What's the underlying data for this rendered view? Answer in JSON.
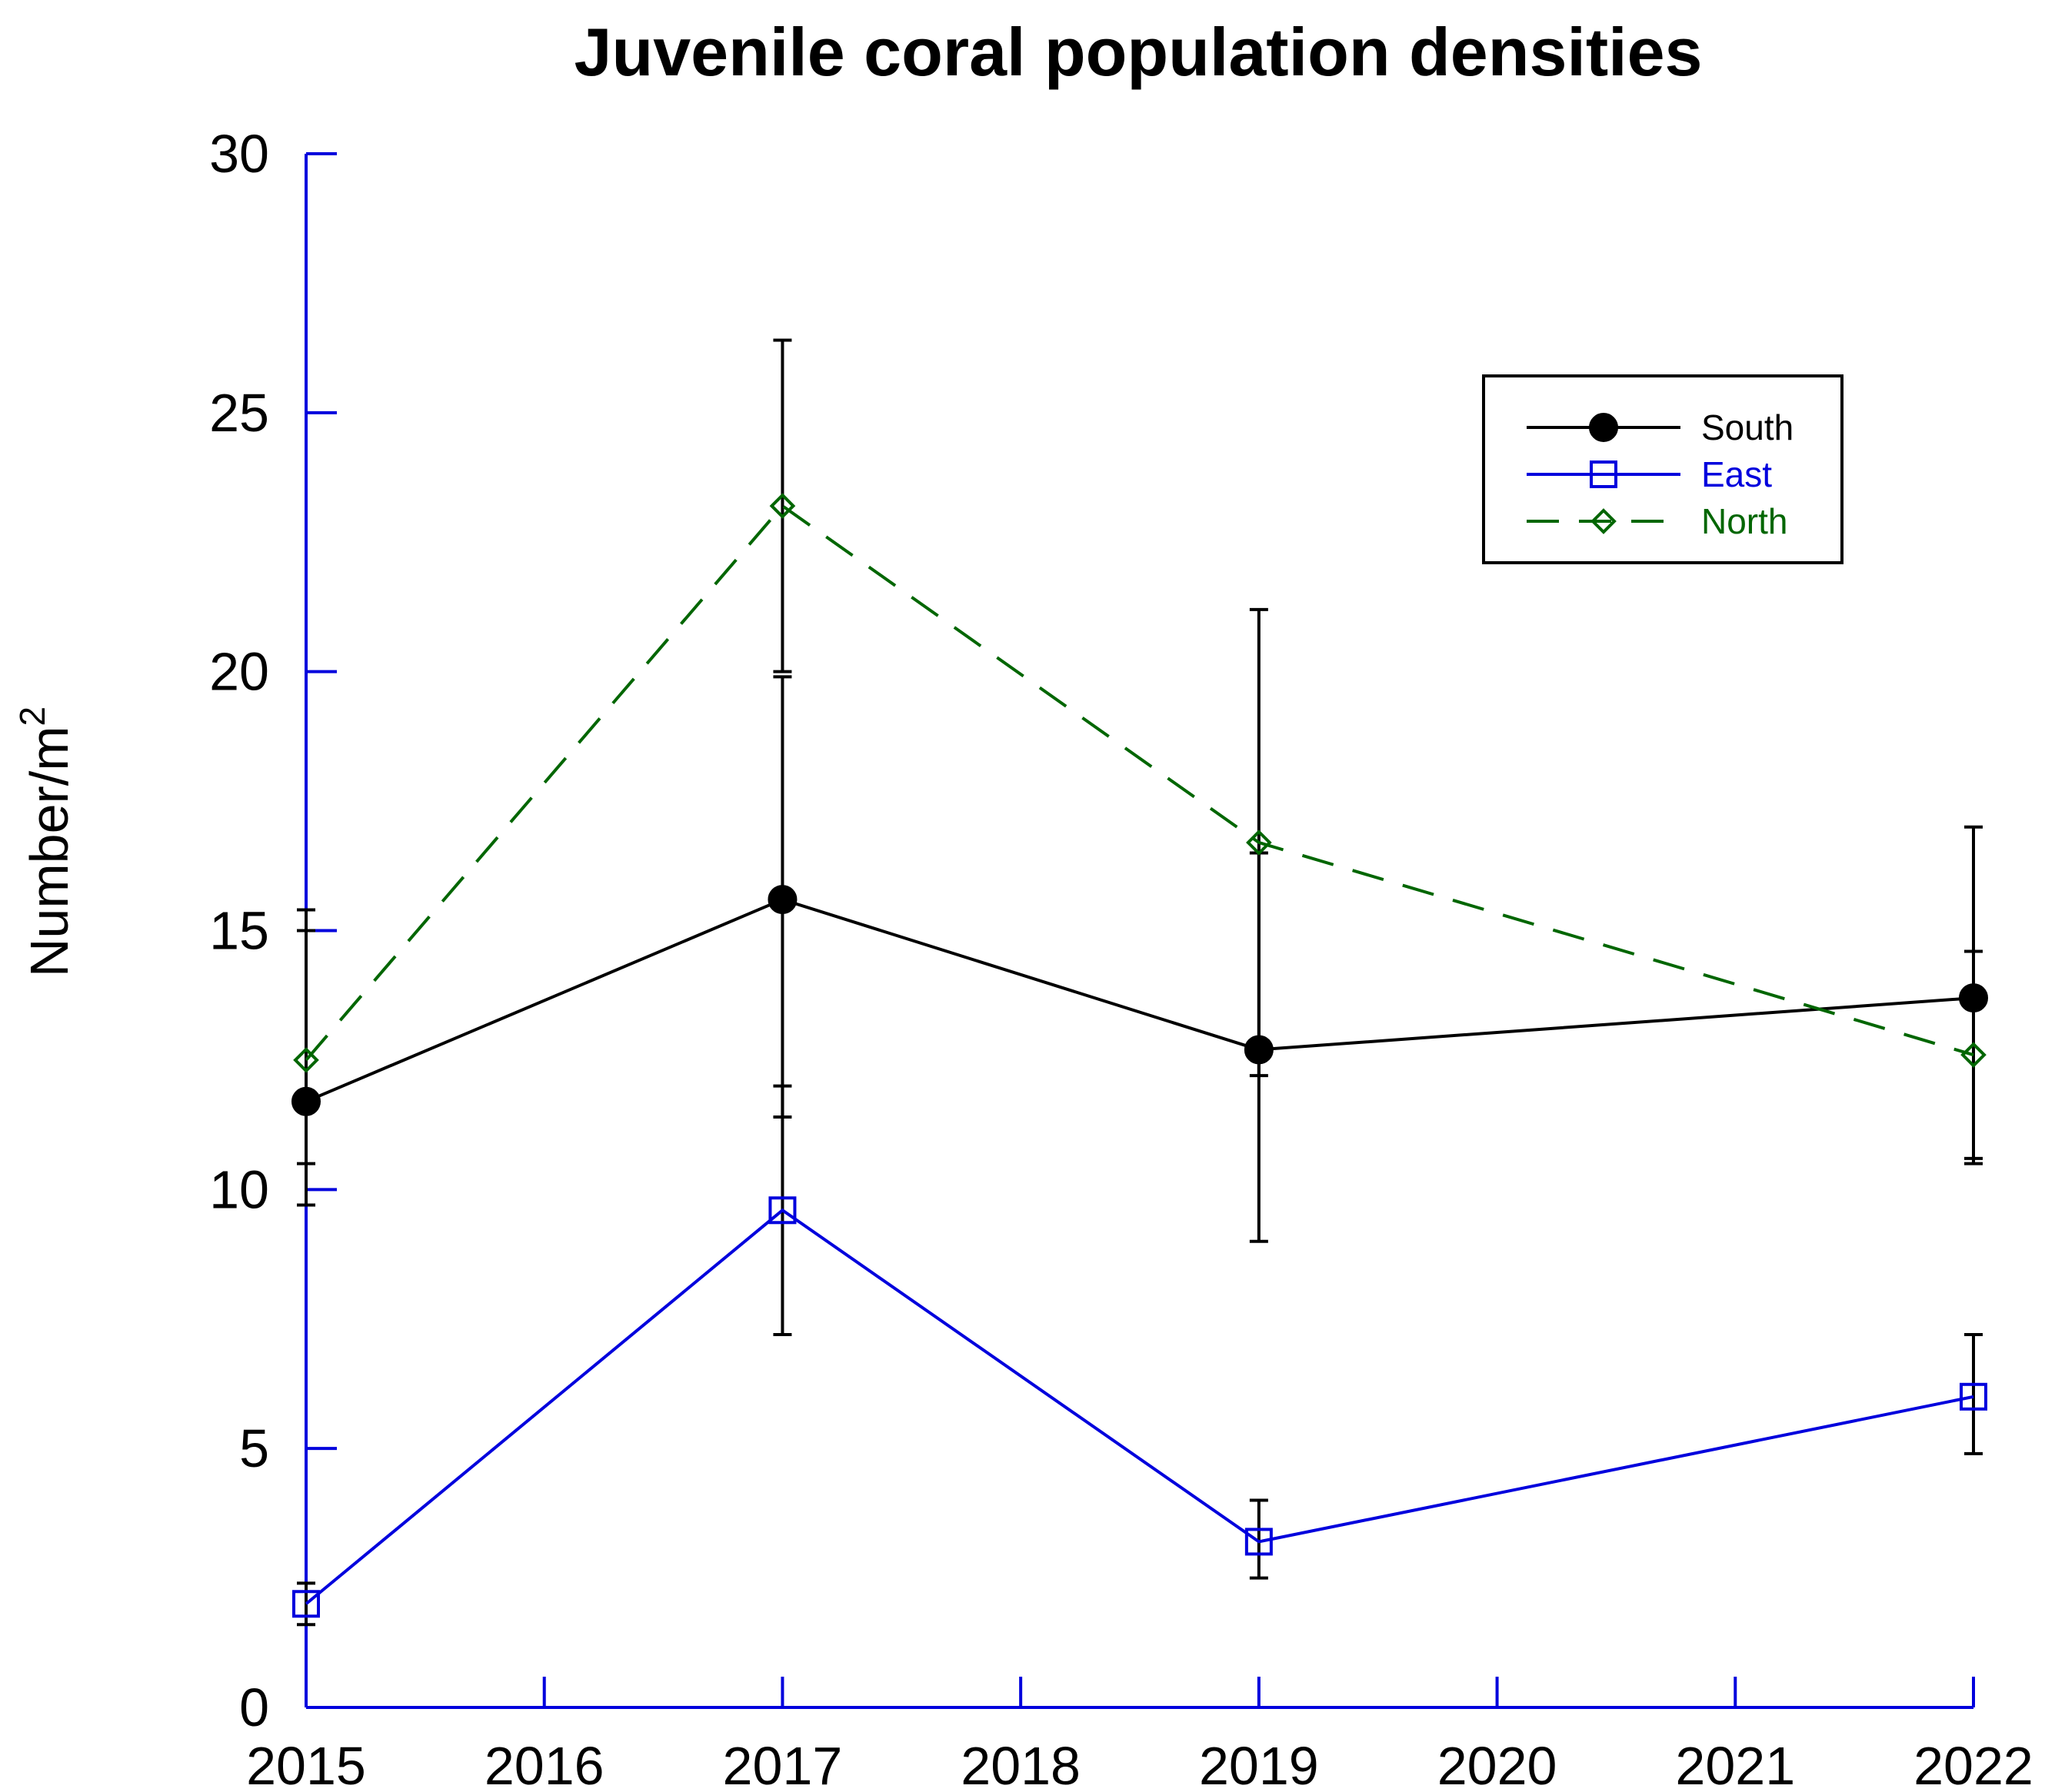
{
  "chart_data": {
    "type": "line",
    "title": "Juvenile coral population densities",
    "xlabel": "",
    "ylabel": "Number/m",
    "ylabel_superscript": "2",
    "x": [
      2015,
      2017,
      2019,
      2022
    ],
    "xticks": [
      2015,
      2016,
      2017,
      2018,
      2019,
      2020,
      2021,
      2022
    ],
    "xtick_labels": [
      "2015",
      "2016",
      "2017",
      "2018",
      "2019",
      "2020",
      "2021",
      "2022"
    ],
    "yticks": [
      0,
      5,
      10,
      15,
      20,
      25,
      30
    ],
    "ytick_labels": [
      "0",
      "5",
      "10",
      "15",
      "20",
      "25",
      "30"
    ],
    "xlim": [
      2015,
      2022
    ],
    "ylim": [
      0,
      30
    ],
    "grid": false,
    "legend_position": "top-right",
    "axis_color": "#0000dd",
    "series": [
      {
        "name": "South",
        "color": "#000000",
        "marker": "filled-circle",
        "line_style": "solid",
        "values": [
          11.7,
          15.6,
          12.7,
          13.7
        ],
        "error_low": [
          9.7,
          11.4,
          9.0,
          10.5
        ],
        "error_high": [
          15.4,
          19.9,
          16.5,
          17.0
        ]
      },
      {
        "name": "East",
        "color": "#0000dd",
        "marker": "open-square",
        "line_style": "solid",
        "values": [
          2.0,
          9.6,
          3.2,
          6.0
        ],
        "error_low": [
          1.6,
          7.2,
          2.5,
          4.9
        ],
        "error_high": [
          2.4,
          12.0,
          4.0,
          7.2
        ]
      },
      {
        "name": "North",
        "color": "#006600",
        "marker": "open-diamond",
        "line_style": "dashed",
        "values": [
          12.5,
          23.2,
          16.7,
          12.6
        ],
        "error_low": [
          10.5,
          20.0,
          12.2,
          10.6
        ],
        "error_high": [
          15.0,
          26.4,
          21.2,
          14.6
        ]
      }
    ]
  }
}
